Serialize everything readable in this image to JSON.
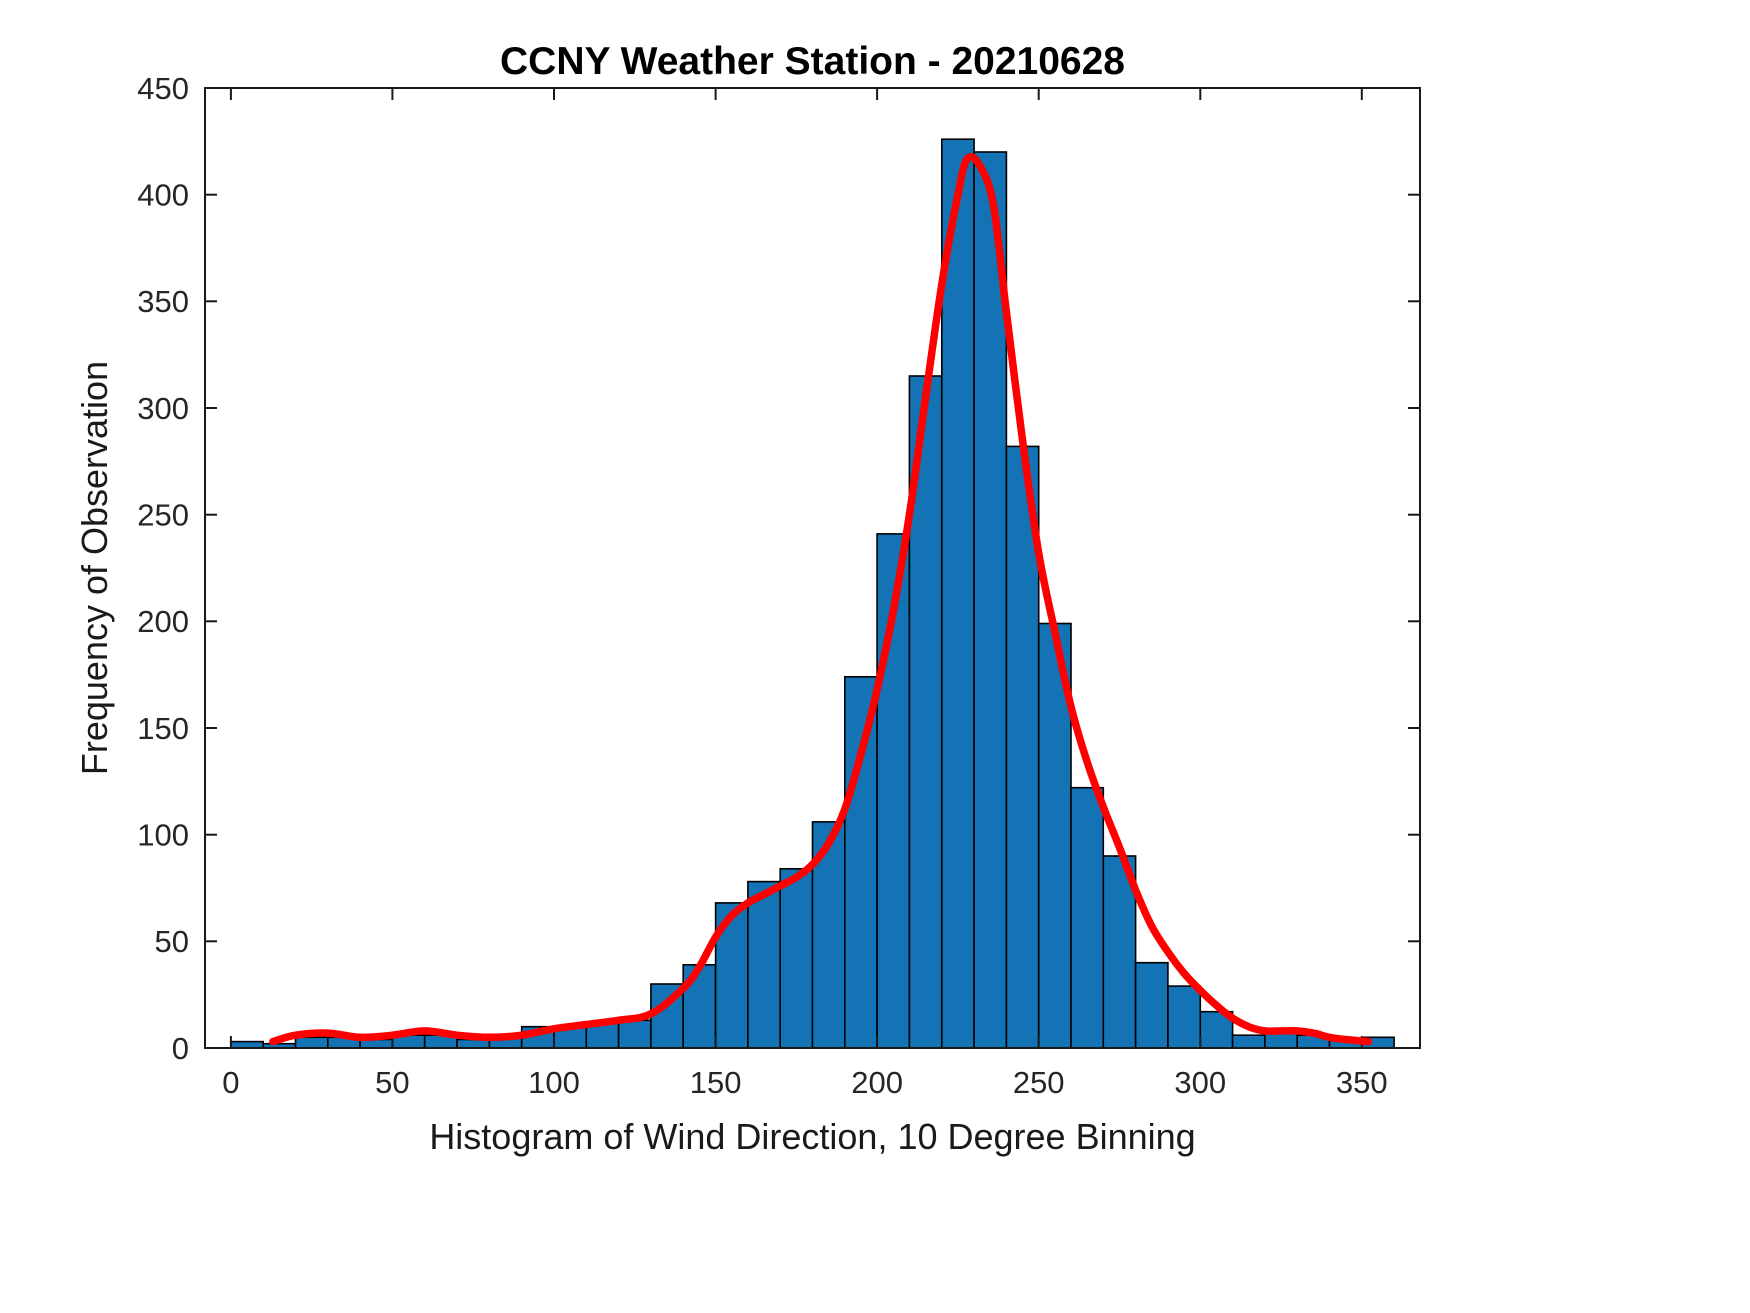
{
  "chart_data": {
    "type": "bar",
    "subtype": "histogram-with-fit-line",
    "title": "CCNY Weather Station - 20210628",
    "xlabel": "Histogram of Wind Direction, 10 Degree Binning",
    "ylabel": "Frequency of Observation",
    "xlim": [
      -8,
      368
    ],
    "ylim": [
      0,
      450
    ],
    "xticks": [
      0,
      50,
      100,
      150,
      200,
      250,
      300,
      350
    ],
    "yticks": [
      0,
      50,
      100,
      150,
      200,
      250,
      300,
      350,
      400,
      450
    ],
    "grid": "off",
    "legend": "none",
    "bin_start": 0,
    "bin_width": 10,
    "bin_edges_note": "36 bins covering 0-360 degrees",
    "values": [
      3,
      2,
      5,
      5,
      4,
      6,
      6,
      4,
      5,
      10,
      10,
      12,
      13,
      30,
      39,
      68,
      78,
      84,
      106,
      174,
      241,
      315,
      426,
      420,
      282,
      199,
      122,
      90,
      40,
      29,
      17,
      6,
      7,
      6,
      4,
      5
    ],
    "bar_color": "#1373b4",
    "bar_edge_color": "#000000",
    "axis_color": "#1a1a1a",
    "fit_line": {
      "color": "#ff0000",
      "width": 7.5,
      "x": [
        13,
        20,
        30,
        40,
        50,
        60,
        70,
        80,
        90,
        100,
        110,
        120,
        130,
        140,
        145,
        150,
        155,
        160,
        165,
        170,
        175,
        180,
        185,
        190,
        195,
        200,
        205,
        210,
        215,
        220,
        225,
        228,
        232,
        236,
        240,
        245,
        250,
        255,
        260,
        265,
        270,
        275,
        280,
        285,
        290,
        295,
        300,
        305,
        310,
        315,
        320,
        325,
        330,
        335,
        340,
        345,
        352
      ],
      "y": [
        3,
        6,
        7,
        5,
        6,
        8,
        6,
        5,
        6,
        9,
        11,
        13,
        16,
        28,
        38,
        52,
        62,
        68,
        72,
        76,
        80,
        86,
        96,
        112,
        138,
        168,
        205,
        250,
        305,
        358,
        400,
        417,
        413,
        395,
        345,
        285,
        232,
        195,
        160,
        134,
        113,
        94,
        74,
        57,
        45,
        35,
        27,
        20,
        14,
        10,
        8,
        8,
        8,
        7,
        5,
        4,
        3
      ]
    }
  }
}
